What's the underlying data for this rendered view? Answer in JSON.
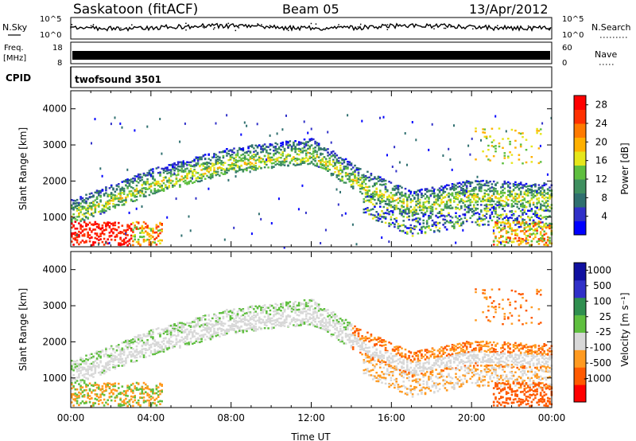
{
  "header": {
    "station": "Saskatoon (fitACF)",
    "beam": "Beam 05",
    "date": "13/Apr/2012"
  },
  "sky_panel": {
    "left_label": "N.Sky",
    "right_label": "N.Search",
    "left_tick_top": "10^5",
    "left_tick_bottom": "10^0",
    "right_tick_top": "10^5",
    "right_tick_bottom": "10^0"
  },
  "freq_panel": {
    "left_label_1": "Freq.",
    "left_label_2": "[MHz]",
    "tick_top": "18",
    "tick_bottom": "8",
    "right_label": "Nave",
    "right_tick_top": "60",
    "right_tick_bottom": "0"
  },
  "cpid_panel": {
    "label": "CPID",
    "value": "twofsound 3501"
  },
  "colors": {
    "power": [
      "#0000ff",
      "#3030c8",
      "#2f6f6f",
      "#3f8f5f",
      "#5fbf3f",
      "#e6e61a",
      "#ffb000",
      "#ff7a00",
      "#ff3000",
      "#ff0000"
    ],
    "velocity": [
      "#ff0000",
      "#ff5a00",
      "#ff9a20",
      "#d8d8d8",
      "#5fbf3f",
      "#2f8f4f",
      "#3030c8",
      "#1010a0"
    ]
  },
  "chart_data": [
    {
      "type": "heatmap",
      "title": "Power",
      "ylabel": "Slant Range [km]",
      "xlabel": "",
      "xlim": [
        "00:00",
        "24:00"
      ],
      "ylim": [
        180,
        4500
      ],
      "yticks": [
        1000,
        2000,
        3000,
        4000
      ],
      "colorbar": {
        "label": "Power [dB]",
        "ticks": [
          4,
          8,
          12,
          16,
          20,
          24,
          28
        ],
        "range": [
          0,
          30
        ]
      },
      "features": [
        {
          "name": "near-range echoes",
          "time_start": "00:00",
          "time_end": "04:30",
          "range_km": [
            250,
            900
          ],
          "power_db": 28
        },
        {
          "name": "main band",
          "points": [
            [
              "00:00",
              1050
            ],
            [
              "04:00",
              1900
            ],
            [
              "08:00",
              2500
            ],
            [
              "12:00",
              2750
            ],
            [
              "14:30",
              1900
            ],
            [
              "17:00",
              1300
            ],
            [
              "20:00",
              1600
            ],
            [
              "24:00",
              1500
            ]
          ],
          "power_db": 12
        },
        {
          "name": "upper scatter",
          "time_start": "20:00",
          "time_end": "23:30",
          "range_km": [
            2500,
            3500
          ],
          "power_db": 16
        }
      ]
    },
    {
      "type": "heatmap",
      "title": "Velocity",
      "ylabel": "Slant Range [km]",
      "xlabel": "Time UT",
      "xlim": [
        "00:00",
        "24:00"
      ],
      "ylim": [
        180,
        4500
      ],
      "yticks": [
        1000,
        2000,
        3000,
        4000
      ],
      "xticks": [
        "00:00",
        "04:00",
        "08:00",
        "12:00",
        "16:00",
        "20:00",
        "00:00"
      ],
      "colorbar": {
        "label": "Velocity [m s⁻¹]",
        "ticks": [
          1000,
          500,
          100,
          25,
          -25,
          -100,
          -500,
          -1000
        ]
      },
      "features": [
        {
          "name": "ground scatter band",
          "velocity_ms": 0
        },
        {
          "name": "morning receding echoes",
          "time_start": "00:00",
          "time_end": "05:00",
          "velocity_ms": -200
        },
        {
          "name": "evening receding echoes",
          "time_start": "14:00",
          "time_end": "24:00",
          "velocity_ms": -300
        },
        {
          "name": "approaching patches",
          "time_start": "02:00",
          "time_end": "07:00",
          "velocity_ms": 150
        }
      ]
    }
  ]
}
